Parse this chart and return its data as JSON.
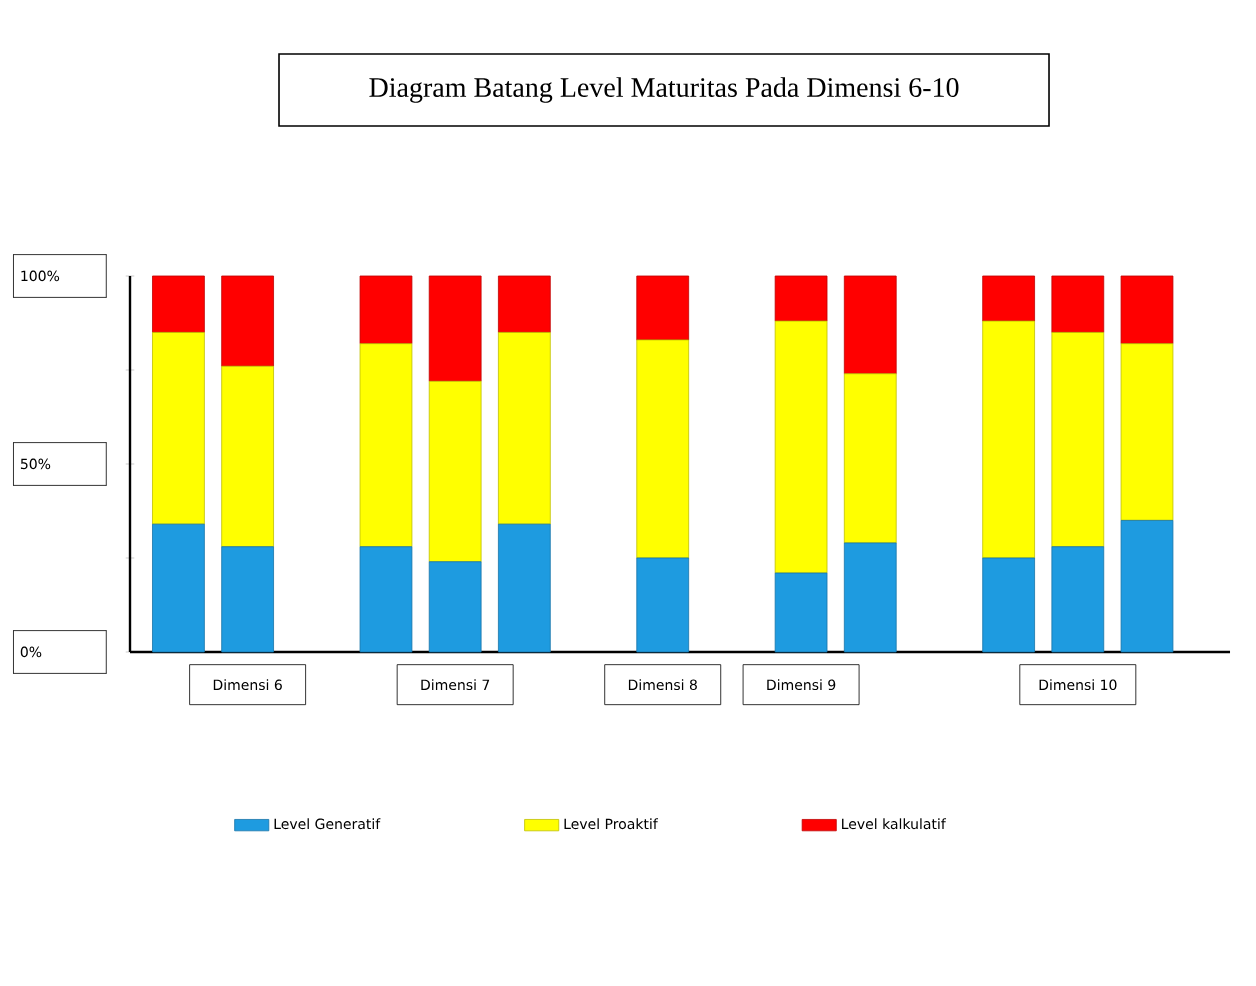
{
  "chart_data": {
    "type": "bar",
    "stacked": true,
    "title": "Diagram Batang Level Maturitas Pada Dimensi 6-10",
    "categories": [
      null,
      "Dimensi 6",
      null,
      null,
      "Dimensi 7",
      null,
      null,
      "Dimensi 8",
      null,
      "Dimensi 9",
      null,
      null,
      null,
      "Dimensi 10",
      null
    ],
    "series": [
      {
        "name": "Level Generatif",
        "color": "#1e9be0",
        "values": [
          34,
          28,
          null,
          28,
          24,
          34,
          null,
          25,
          null,
          21,
          29,
          null,
          25,
          28,
          35
        ]
      },
      {
        "name": "Level Proaktif",
        "color": "#ffff00",
        "values": [
          51,
          48,
          null,
          54,
          48,
          51,
          null,
          58,
          null,
          67,
          45,
          null,
          63,
          57,
          47
        ]
      },
      {
        "name": "Level kalkulatif",
        "color": "#ff0000",
        "values": [
          15,
          24,
          null,
          18,
          28,
          15,
          null,
          17,
          null,
          12,
          26,
          null,
          12,
          15,
          18
        ]
      }
    ],
    "ylim": [
      0,
      100
    ],
    "yticks": [
      {
        "value": 0,
        "label": "0%"
      },
      {
        "value": 25,
        "label": null
      },
      {
        "value": 50,
        "label": "50%"
      },
      {
        "value": 75,
        "label": null
      },
      {
        "value": 100,
        "label": "100%"
      }
    ],
    "legend": "bottom"
  }
}
